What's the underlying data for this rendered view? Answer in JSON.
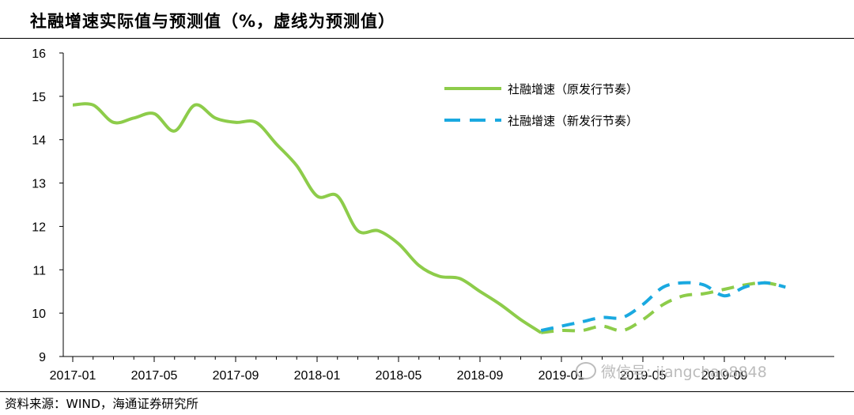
{
  "header": {
    "title": "社融增速实际值与预测值（%，虚线为预测值）"
  },
  "footer": {
    "source": "资料来源：WIND，海通证券研究所"
  },
  "watermark": {
    "text": "微信号: jiangchao8848"
  },
  "chart_data": {
    "type": "line",
    "title": "社融增速实际值与预测值（%，虚线为预测值）",
    "xlabel": "",
    "ylabel": "",
    "ylim": [
      9,
      16
    ],
    "yticks": [
      "16",
      "15",
      "14",
      "13",
      "12",
      "11",
      "10",
      "9"
    ],
    "xticks": [
      "2017-01",
      "2017-05",
      "2017-09",
      "2018-01",
      "2018-05",
      "2018-09",
      "2019-01",
      "2019-05",
      "2019-09"
    ],
    "grid": false,
    "legend": "top-center",
    "x": [
      "2017-01",
      "2017-02",
      "2017-03",
      "2017-04",
      "2017-05",
      "2017-06",
      "2017-07",
      "2017-08",
      "2017-09",
      "2017-10",
      "2017-11",
      "2017-12",
      "2018-01",
      "2018-02",
      "2018-03",
      "2018-04",
      "2018-05",
      "2018-06",
      "2018-07",
      "2018-08",
      "2018-09",
      "2018-10",
      "2018-11",
      "2018-12",
      "2019-01",
      "2019-02",
      "2019-03",
      "2019-04",
      "2019-05",
      "2019-06",
      "2019-07",
      "2019-08",
      "2019-09",
      "2019-10",
      "2019-11",
      "2019-12"
    ],
    "series": [
      {
        "name": "社融增速（原发行节奏）",
        "color": "#8dcc4a",
        "style": "solid",
        "values": [
          14.8,
          14.8,
          14.4,
          14.5,
          14.6,
          14.2,
          14.8,
          14.5,
          14.4,
          14.4,
          13.9,
          13.4,
          12.7,
          12.7,
          11.9,
          11.9,
          11.6,
          11.1,
          10.85,
          10.8,
          10.5,
          10.2,
          9.85,
          9.55,
          null,
          null,
          null,
          null,
          null,
          null,
          null,
          null,
          null,
          null,
          null,
          null
        ]
      },
      {
        "name": "社融增速（原发行节奏）预测",
        "color": "#8dcc4a",
        "style": "dashed",
        "values": [
          null,
          null,
          null,
          null,
          null,
          null,
          null,
          null,
          null,
          null,
          null,
          null,
          null,
          null,
          null,
          null,
          null,
          null,
          null,
          null,
          null,
          null,
          null,
          9.55,
          9.6,
          9.6,
          9.7,
          9.6,
          9.85,
          10.2,
          10.4,
          10.45,
          10.55,
          10.65,
          10.7,
          10.6
        ]
      },
      {
        "name": "社融增速（新发行节奏）",
        "color": "#1aa9e0",
        "style": "dashed",
        "values": [
          null,
          null,
          null,
          null,
          null,
          null,
          null,
          null,
          null,
          null,
          null,
          null,
          null,
          null,
          null,
          null,
          null,
          null,
          null,
          null,
          null,
          null,
          null,
          9.6,
          9.7,
          9.8,
          9.9,
          9.9,
          10.2,
          10.6,
          10.7,
          10.65,
          10.4,
          10.6,
          10.7,
          10.6
        ]
      }
    ]
  }
}
